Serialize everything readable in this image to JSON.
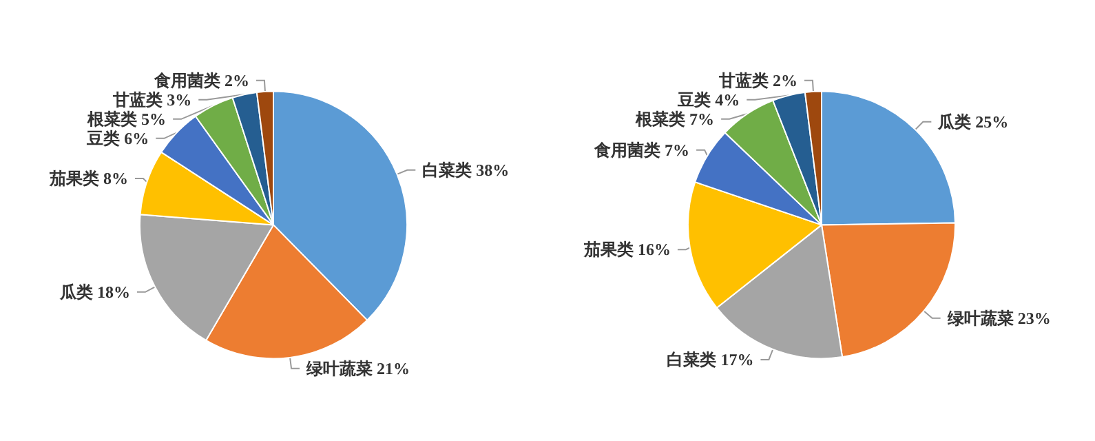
{
  "chart_data": [
    {
      "type": "pie",
      "categories": [
        "白菜类",
        "绿叶蔬菜",
        "瓜类",
        "茄果类",
        "豆类",
        "根菜类",
        "甘蓝类",
        "食用菌类"
      ],
      "values": [
        38,
        21,
        18,
        8,
        6,
        5,
        3,
        2
      ],
      "value_labels": [
        "38%",
        "21%",
        "18%",
        "8%",
        "6%",
        "5%",
        "3%",
        "2%"
      ],
      "colors": [
        "#5b9bd5",
        "#ed7d31",
        "#a5a5a5",
        "#ffc000",
        "#4472c4",
        "#70ad47",
        "#255e91",
        "#9e480e"
      ]
    },
    {
      "type": "pie",
      "categories": [
        "瓜类",
        "绿叶蔬菜",
        "白菜类",
        "茄果类",
        "食用菌类",
        "根菜类",
        "豆类",
        "甘蓝类"
      ],
      "values": [
        25,
        23,
        17,
        16,
        7,
        7,
        4,
        2
      ],
      "value_labels": [
        "25%",
        "23%",
        "17%",
        "16%",
        "7%",
        "7%",
        "4%",
        "2%"
      ],
      "colors": [
        "#5b9bd5",
        "#ed7d31",
        "#a5a5a5",
        "#ffc000",
        "#4472c4",
        "#70ad47",
        "#255e91",
        "#9e480e"
      ]
    }
  ]
}
